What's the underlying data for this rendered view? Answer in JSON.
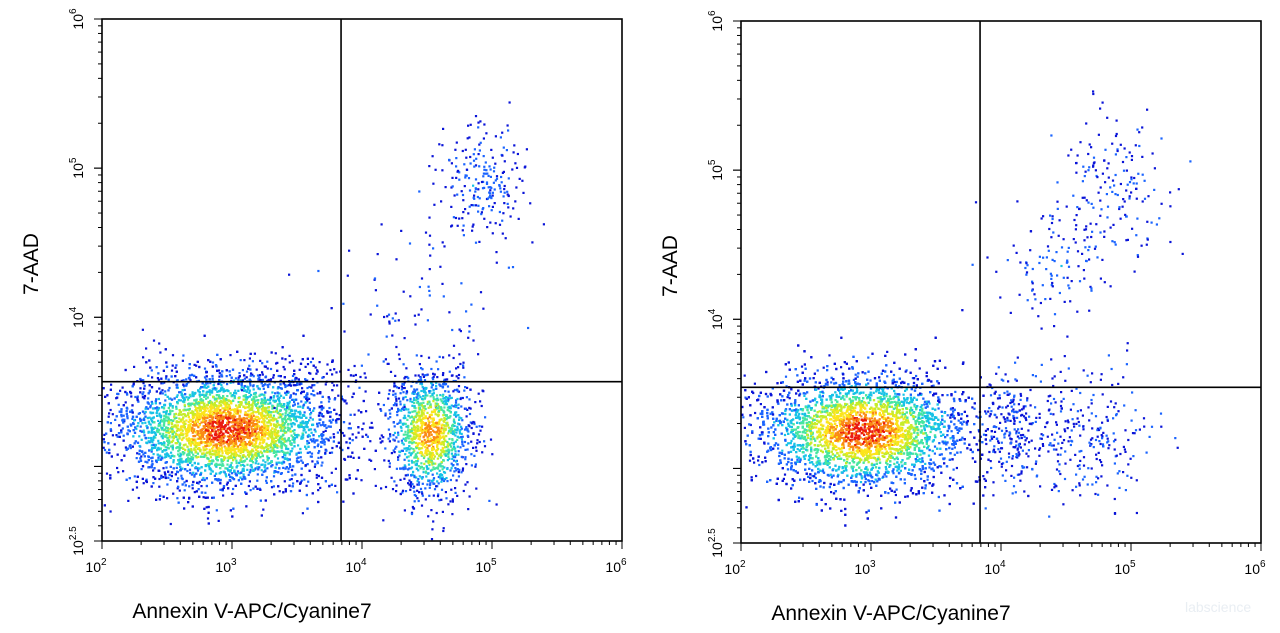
{
  "chart_data": [
    {
      "type": "scatter",
      "subtype": "flow-cytometry-density-dot-plot",
      "xlabel": "Annexin V-APC/Cyanine7",
      "ylabel": "7-AAD",
      "x_scale": "log",
      "y_scale": "log",
      "xlim": [
        100,
        1000000
      ],
      "ylim": [
        316.23,
        1000000
      ],
      "x_ticks": [
        {
          "base": "10",
          "exp": "2",
          "value": 100
        },
        {
          "base": "10",
          "exp": "3",
          "value": 1000
        },
        {
          "base": "10",
          "exp": "4",
          "value": 10000
        },
        {
          "base": "10",
          "exp": "5",
          "value": 100000
        },
        {
          "base": "10",
          "exp": "6",
          "value": 1000000
        }
      ],
      "y_ticks": [
        {
          "base": "10",
          "exp": "2.5",
          "value": 316.23
        },
        {
          "base": "10",
          "exp": "4",
          "value": 10000
        },
        {
          "base": "10",
          "exp": "5",
          "value": 100000
        },
        {
          "base": "10",
          "exp": "6",
          "value": 1000000
        }
      ],
      "quadrant_gate": {
        "x": 6900,
        "y": 3700
      },
      "color_scale": [
        "#0a14d8",
        "#1a64ff",
        "#16c2e6",
        "#46e6a0",
        "#c6ec2a",
        "#fce41c",
        "#fa8a14",
        "#ea1a10"
      ],
      "populations": [
        {
          "cx": 900,
          "cy": 1800,
          "sx": 0.42,
          "sy": 0.19,
          "n": 5200,
          "peak": 7
        },
        {
          "cx": 33000,
          "cy": 1700,
          "sx": 0.16,
          "sy": 0.21,
          "n": 1300,
          "peak": 6
        },
        {
          "cx": 80000,
          "cy": 80000,
          "sx": 0.17,
          "sy": 0.2,
          "n": 220,
          "peak": 1
        },
        {
          "cx": 25000,
          "cy": 15000,
          "sx": 0.32,
          "sy": 0.32,
          "n": 70,
          "peak": 0
        },
        {
          "cx": 3000,
          "cy": 4200,
          "sx": 0.38,
          "sy": 0.08,
          "n": 80,
          "peak": 0
        }
      ]
    },
    {
      "type": "scatter",
      "subtype": "flow-cytometry-density-dot-plot",
      "xlabel": "Annexin V-APC/Cyanine7",
      "ylabel": "7-AAD",
      "x_scale": "log",
      "y_scale": "log",
      "xlim": [
        100,
        1000000
      ],
      "ylim": [
        316.23,
        1000000
      ],
      "x_ticks": [
        {
          "base": "10",
          "exp": "2",
          "value": 100
        },
        {
          "base": "10",
          "exp": "3",
          "value": 1000
        },
        {
          "base": "10",
          "exp": "4",
          "value": 10000
        },
        {
          "base": "10",
          "exp": "5",
          "value": 100000
        },
        {
          "base": "10",
          "exp": "6",
          "value": 1000000
        }
      ],
      "y_ticks": [
        {
          "base": "10",
          "exp": "2.5",
          "value": 316.23
        },
        {
          "base": "10",
          "exp": "4",
          "value": 10000
        },
        {
          "base": "10",
          "exp": "5",
          "value": 100000
        },
        {
          "base": "10",
          "exp": "6",
          "value": 1000000
        }
      ],
      "quadrant_gate": {
        "x": 6900,
        "y": 3500
      },
      "color_scale": [
        "#0a14d8",
        "#1a64ff",
        "#16c2e6",
        "#46e6a0",
        "#c6ec2a",
        "#fce41c",
        "#fa8a14",
        "#ea1a10"
      ],
      "populations": [
        {
          "cx": 850,
          "cy": 1800,
          "sx": 0.4,
          "sy": 0.19,
          "n": 5600,
          "peak": 7
        },
        {
          "cx": 45000,
          "cy": 1700,
          "sx": 0.25,
          "sy": 0.23,
          "n": 260,
          "peak": 0
        },
        {
          "cx": 70000,
          "cy": 80000,
          "sx": 0.2,
          "sy": 0.22,
          "n": 170,
          "peak": 0
        },
        {
          "cx": 25000,
          "cy": 22000,
          "sx": 0.22,
          "sy": 0.18,
          "n": 110,
          "peak": 1
        },
        {
          "cx": 12000,
          "cy": 1800,
          "sx": 0.12,
          "sy": 0.2,
          "n": 220,
          "peak": 0
        }
      ]
    }
  ],
  "watermark": "labscience"
}
